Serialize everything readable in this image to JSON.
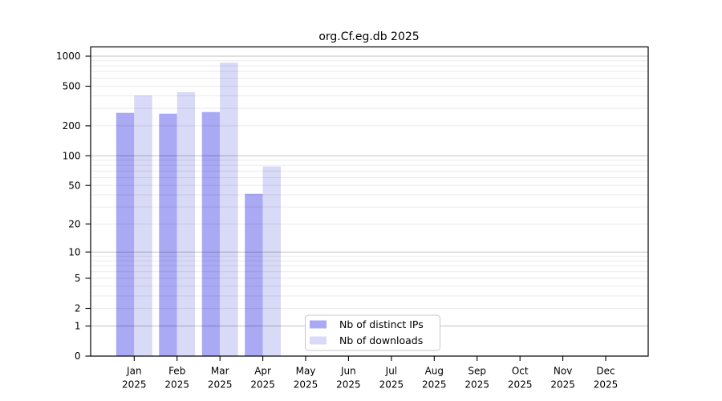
{
  "page": {
    "background": "#ffffff"
  },
  "chart_data": {
    "type": "bar",
    "title": "org.Cf.eg.db 2025",
    "xlabel": "",
    "ylabel": "",
    "scale": "log10(1+x)",
    "categories": [
      "Jan",
      "Feb",
      "Mar",
      "Apr",
      "May",
      "Jun",
      "Jul",
      "Aug",
      "Sep",
      "Oct",
      "Nov",
      "Dec"
    ],
    "category_year": "2025",
    "series": [
      {
        "name": "Nb of distinct IPs",
        "color": "#a9a9f4",
        "values": [
          270,
          265,
          275,
          41,
          0,
          0,
          0,
          0,
          0,
          0,
          0,
          0
        ]
      },
      {
        "name": "Nb of downloads",
        "color": "#d9d9f8",
        "values": [
          405,
          435,
          860,
          78,
          0,
          0,
          0,
          0,
          0,
          0,
          0,
          0
        ]
      }
    ],
    "y_ticks": [
      0,
      1,
      2,
      5,
      10,
      20,
      50,
      100,
      200,
      500,
      1000
    ],
    "ylim": [
      0,
      1240
    ],
    "grid": "on",
    "grid_major": [
      1,
      10,
      100,
      1000
    ],
    "grid_minor": [
      2,
      3,
      4,
      5,
      6,
      7,
      8,
      9,
      20,
      30,
      40,
      50,
      60,
      70,
      80,
      90,
      200,
      300,
      400,
      500,
      600,
      700,
      800,
      900
    ],
    "grid_major_color": "rgba(0,0,0,0.24)",
    "grid_minor_color": "rgba(0,0,0,0.08)",
    "axis_color": "#000000",
    "legend": {
      "position": "inside-bottom-center"
    }
  }
}
